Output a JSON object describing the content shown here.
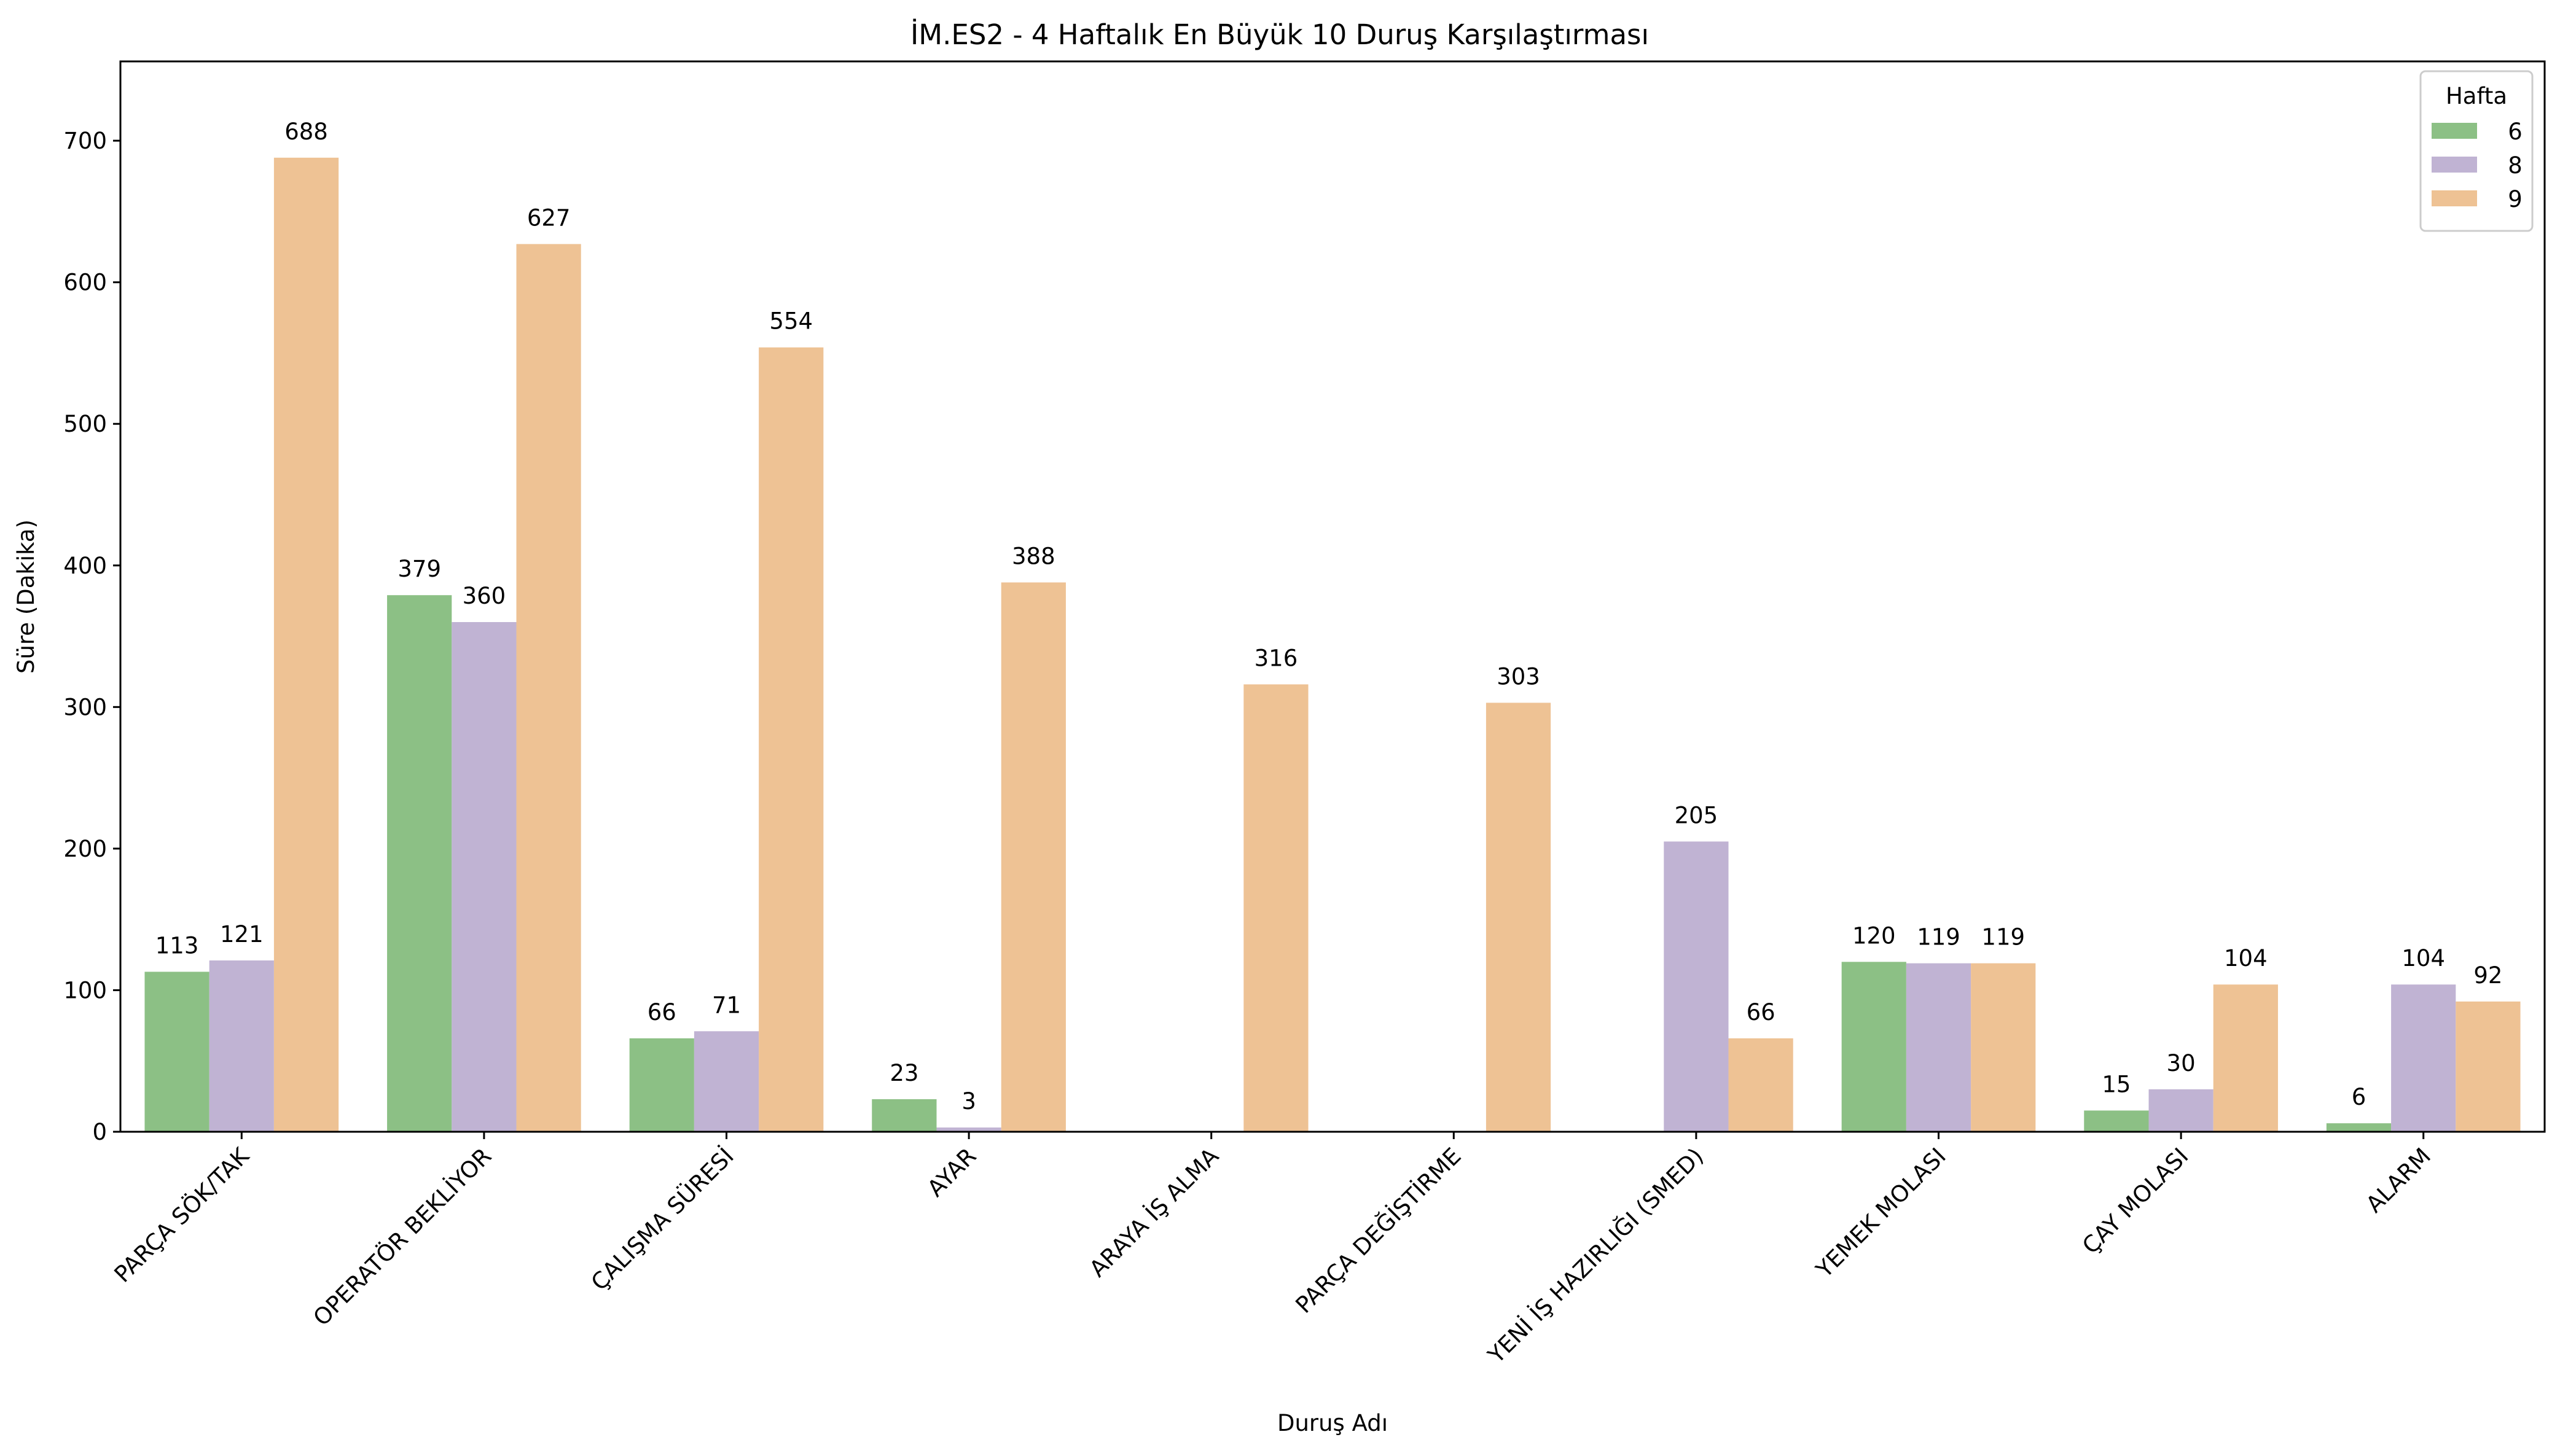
{
  "chart_data": {
    "type": "bar",
    "title": "İM.ES2 - 4 Haftalık En Büyük 10 Duruş Karşılaştırması",
    "xlabel": "Duruş Adı",
    "ylabel": "Süre (Dakika)",
    "ylim": [
      0,
      756
    ],
    "yticks": [
      0,
      100,
      200,
      300,
      400,
      500,
      600,
      700
    ],
    "grid": false,
    "legend_title": "Hafta",
    "legend_position": "top-right",
    "categories": [
      "PARÇA SÖK/TAK",
      "OPERATÖR BEKLİYOR",
      "ÇALIŞMA SÜRESİ",
      "AYAR",
      "ARAYA İŞ ALMA",
      "PARÇA DEĞİŞTİRME",
      "YENİ İŞ HAZIRLIĞI (SMED)",
      "YEMEK MOLASI",
      "ÇAY MOLASI",
      "ALARM"
    ],
    "series": [
      {
        "name": "6",
        "color": "#8cc085",
        "values": [
          113,
          379,
          66,
          23,
          null,
          null,
          null,
          120,
          15,
          6
        ]
      },
      {
        "name": "8",
        "color": "#c0b3d3",
        "values": [
          121,
          360,
          71,
          3,
          null,
          null,
          205,
          119,
          30,
          104
        ]
      },
      {
        "name": "9",
        "color": "#eec294",
        "values": [
          688,
          627,
          554,
          388,
          316,
          303,
          66,
          119,
          104,
          92
        ]
      }
    ]
  }
}
